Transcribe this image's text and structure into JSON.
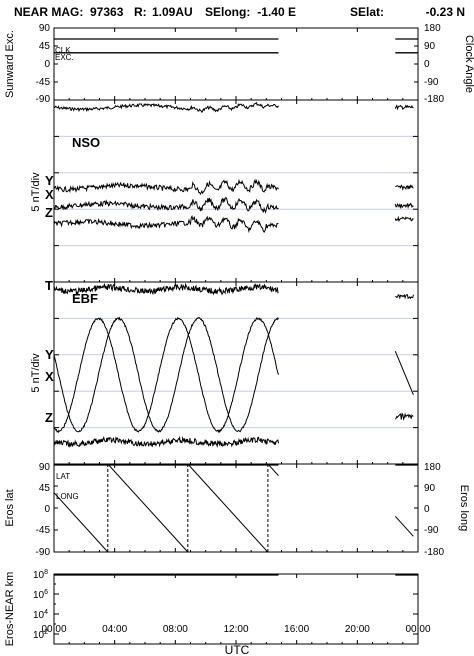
{
  "title": {
    "prefix": "NEAR MAG:",
    "day": "97363",
    "r_label": "R:",
    "r_value": "1.09AU",
    "selong_label": "SElong:",
    "selong_value": "-1.40 E",
    "selat_label": "SElat:",
    "selat_value": "-0.23 N"
  },
  "x_axis": {
    "label": "UTC",
    "ticks": [
      "00:00",
      "04:00",
      "08:00",
      "12:00",
      "16:00",
      "20:00",
      "00:00"
    ],
    "range_hours": [
      0,
      24
    ],
    "data_end_hours": 14.8,
    "data_resume_hours": 22.5
  },
  "chart_data": [
    {
      "type": "line",
      "panel": "sunward-clock",
      "ylabel": "Sunward Exc.",
      "ylabel_right": "Clock Angle",
      "yticks": [
        "90",
        "45",
        "0",
        "-45",
        "-90"
      ],
      "yticks_right": [
        "180",
        "90",
        "0",
        "-90",
        "-180"
      ],
      "ylim": [
        -90,
        90
      ],
      "ylim_right": [
        -180,
        180
      ],
      "series": [
        {
          "name": "CLK",
          "level_right": 125
        },
        {
          "name": "EXC.",
          "level": 28
        }
      ]
    },
    {
      "type": "line",
      "panel": "nso-field",
      "ylabel": "5 nT/div",
      "frame_label": "NSO",
      "component_labels": [
        "Y",
        "X",
        "Z"
      ],
      "series": [
        {
          "name": "T",
          "offset_div": 0.2
        },
        {
          "name": "Y",
          "offset_div": 2.4
        },
        {
          "name": "X",
          "offset_div": 2.9
        },
        {
          "name": "Z",
          "offset_div": 3.4
        }
      ]
    },
    {
      "type": "line",
      "panel": "ebf-field",
      "ylabel": "5 nT/div",
      "frame_label": "EBF",
      "component_labels": [
        "T",
        "Y",
        "X",
        "Z"
      ],
      "rotation_period_hours": 5.27,
      "series": [
        {
          "name": "T",
          "offset_div": 0.2
        },
        {
          "name": "Y",
          "offset_div": 2.4
        },
        {
          "name": "X",
          "offset_div": 3.0
        },
        {
          "name": "Z",
          "offset_div": 4.4
        }
      ]
    },
    {
      "type": "line",
      "panel": "eros-lat-long",
      "ylabel": "Eros lat",
      "ylabel_right": "Eros long",
      "series_labels": [
        "LAT",
        "LONG"
      ],
      "yticks": [
        "90",
        "45",
        "0",
        "-45",
        "-90"
      ],
      "yticks_right": [
        "180",
        "90",
        "0",
        "-90",
        "-180"
      ],
      "ylim": [
        -90,
        90
      ],
      "ylim_right": [
        -180,
        180
      ],
      "lat_value": 88,
      "long_wraps_hours": [
        3.55,
        8.82,
        14.1
      ],
      "long_rotation_period_hours": 5.27
    },
    {
      "type": "line",
      "panel": "eros-near-distance",
      "ylabel": "Eros-NEAR km",
      "yscale": "log",
      "yticks": [
        "10^8",
        "10^6",
        "10^4",
        "10^2"
      ],
      "ylim": [
        10,
        100000000
      ],
      "distance_km": 80000000
    }
  ]
}
